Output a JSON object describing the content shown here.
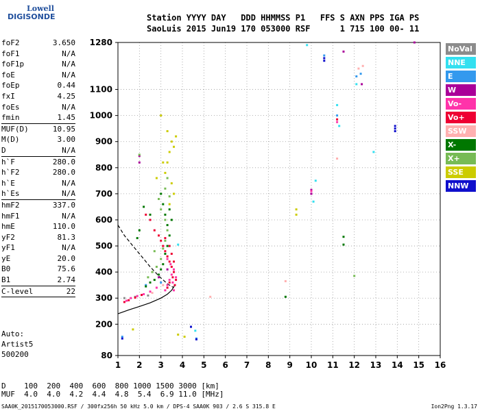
{
  "logo": {
    "line1": "Lowell",
    "line2": "DIGISONDE"
  },
  "header": {
    "line1": "Station YYYY DAY   DDD HHMMSS P1   FFS S AXN PPS IGA PS",
    "line2": "SaoLuis 2015 Jun19 170 053000 RSF      1 715 100 00- 11"
  },
  "params": [
    {
      "k": "foF2",
      "v": "3.650"
    },
    {
      "k": "foF1",
      "v": "N/A"
    },
    {
      "k": "foF1p",
      "v": "N/A"
    },
    {
      "k": "foE",
      "v": "N/A"
    },
    {
      "k": "foEp",
      "v": "0.44"
    },
    {
      "k": "fxI",
      "v": "4.25"
    },
    {
      "k": "foEs",
      "v": "N/A"
    },
    {
      "k": "fmin",
      "v": "1.45"
    },
    {
      "k": "MUF(D)",
      "v": "10.95",
      "sep": true
    },
    {
      "k": "M(D)",
      "v": "3.00"
    },
    {
      "k": "D",
      "v": "N/A"
    },
    {
      "k": "h`F",
      "v": "280.0",
      "sep": true
    },
    {
      "k": "h`F2",
      "v": "280.0"
    },
    {
      "k": "h`E",
      "v": "N/A"
    },
    {
      "k": "h`Es",
      "v": "N/A"
    },
    {
      "k": "hmF2",
      "v": "337.0",
      "sep": true
    },
    {
      "k": "hmF1",
      "v": "N/A"
    },
    {
      "k": "hmE",
      "v": "110.0"
    },
    {
      "k": "yF2",
      "v": "81.3"
    },
    {
      "k": "yF1",
      "v": "N/A"
    },
    {
      "k": "yE",
      "v": "20.0"
    },
    {
      "k": "B0",
      "v": "75.6"
    },
    {
      "k": "B1",
      "v": "2.74"
    },
    {
      "k": "C-level",
      "v": "22",
      "sep": true
    }
  ],
  "artist": {
    "l1": "Auto:",
    "l2": "Artist5",
    "l3": "500200"
  },
  "legend": [
    {
      "label": "NoVal",
      "color": "#8c8c8c"
    },
    {
      "label": "NNE",
      "color": "#33e0f0"
    },
    {
      "label": "E",
      "color": "#3399ee"
    },
    {
      "label": "W",
      "color": "#aa0099"
    },
    {
      "label": "Vo-",
      "color": "#ff33aa"
    },
    {
      "label": "Vo+",
      "color": "#ee0033"
    },
    {
      "label": "SSW",
      "color": "#ffb0b0"
    },
    {
      "label": "X-",
      "color": "#007700"
    },
    {
      "label": "X+",
      "color": "#77bb55"
    },
    {
      "label": "SSE",
      "color": "#cccc00"
    },
    {
      "label": "NNW",
      "color": "#1010cc"
    }
  ],
  "muf_table": {
    "d_label": "D  ",
    "d_values": "100  200  400  600  800 1000 1500 3000 [km]",
    "m_label": "MUF",
    "m_values": "4.0  4.0  4.2  4.4  4.8  5.4  6.9 11.0 [MHz]"
  },
  "footer": "SAA0K_2015170053000.RSF / 300fx256h 50 kHz 5.0 km / DPS-4 SAA0K 903 / 2.6 S 315.8 E",
  "footer_right": "Ion2Png 1.3.17",
  "chart_data": {
    "type": "scatter",
    "xlabel": "",
    "ylabel": "",
    "x_ticks": [
      1,
      2,
      3,
      4,
      5,
      6,
      7,
      8,
      9,
      10,
      11,
      12,
      13,
      14,
      15,
      16
    ],
    "y_ticks": [
      80,
      200,
      300,
      400,
      500,
      600,
      700,
      800,
      900,
      1000,
      1100,
      1280
    ],
    "xlim": [
      1,
      16
    ],
    "ylim": [
      80,
      1280
    ],
    "grid": "dotted",
    "series": [
      {
        "name": "NoVal",
        "color": "#8c8c8c",
        "points": [
          [
            1.3,
            300
          ],
          [
            1.8,
            305
          ],
          [
            2.4,
            310
          ]
        ]
      },
      {
        "name": "NNE",
        "color": "#33e0f0",
        "points": [
          [
            9.8,
            1270
          ],
          [
            10.1,
            670
          ],
          [
            11.2,
            1040
          ],
          [
            12.1,
            1120
          ],
          [
            12.9,
            860
          ],
          [
            10.2,
            750
          ],
          [
            4.6,
            175
          ],
          [
            11.3,
            960
          ],
          [
            3.8,
            505
          ]
        ]
      },
      {
        "name": "E",
        "color": "#3399ee",
        "points": [
          [
            10.6,
            1230
          ],
          [
            11.2,
            1000
          ],
          [
            12.1,
            1150
          ],
          [
            12.3,
            1160
          ],
          [
            1.2,
            152
          ],
          [
            4.4,
            190
          ],
          [
            4.65,
            145
          ],
          [
            3.0,
            360
          ],
          [
            2.3,
            350
          ]
        ]
      },
      {
        "name": "W",
        "color": "#aa0099",
        "points": [
          [
            11.5,
            1245
          ],
          [
            10.0,
            715
          ],
          [
            10.0,
            700
          ],
          [
            14.8,
            1280
          ],
          [
            3.3,
            410
          ],
          [
            2.9,
            380
          ],
          [
            12.35,
            1120
          ],
          [
            2.0,
            820
          ],
          [
            2.0,
            845
          ]
        ]
      },
      {
        "name": "Vo-",
        "color": "#ff33aa",
        "points": [
          [
            10.0,
            710
          ],
          [
            11.2,
            975
          ],
          [
            3.2,
            330
          ],
          [
            3.3,
            350
          ],
          [
            3.4,
            370
          ],
          [
            3.5,
            390
          ],
          [
            3.6,
            410
          ],
          [
            3.45,
            430
          ],
          [
            3.3,
            450
          ],
          [
            2.8,
            340
          ],
          [
            2.5,
            325
          ],
          [
            2.2,
            315
          ],
          [
            1.9,
            308
          ],
          [
            1.6,
            300
          ],
          [
            1.4,
            290
          ],
          [
            3.55,
            360
          ],
          [
            3.6,
            330
          ],
          [
            3.7,
            380
          ]
        ]
      },
      {
        "name": "Vo+",
        "color": "#ee0033",
        "points": [
          [
            11.2,
            985
          ],
          [
            3.3,
            340
          ],
          [
            3.4,
            360
          ],
          [
            3.55,
            380
          ],
          [
            3.6,
            400
          ],
          [
            3.5,
            420
          ],
          [
            3.4,
            440
          ],
          [
            3.3,
            460
          ],
          [
            3.2,
            480
          ],
          [
            3.1,
            500
          ],
          [
            3.0,
            520
          ],
          [
            2.9,
            540
          ],
          [
            2.7,
            560
          ],
          [
            2.5,
            600
          ],
          [
            2.3,
            620
          ],
          [
            3.65,
            350
          ],
          [
            3.7,
            370
          ],
          [
            3.6,
            440
          ],
          [
            3.5,
            470
          ],
          [
            3.4,
            500
          ],
          [
            3.2,
            530
          ],
          [
            2.1,
            312
          ],
          [
            1.8,
            302
          ],
          [
            1.5,
            292
          ],
          [
            1.3,
            285
          ]
        ]
      },
      {
        "name": "SSW",
        "color": "#ffb0b0",
        "points": [
          [
            8.8,
            365
          ],
          [
            11.2,
            835
          ],
          [
            5.3,
            305
          ],
          [
            12.2,
            1180
          ],
          [
            12.4,
            1190
          ],
          [
            3.1,
            350
          ],
          [
            2.6,
            320
          ]
        ]
      },
      {
        "name": "X-",
        "color": "#007700",
        "points": [
          [
            11.5,
            535
          ],
          [
            11.5,
            505
          ],
          [
            8.8,
            305
          ],
          [
            3.1,
            430
          ],
          [
            3.2,
            470
          ],
          [
            3.3,
            500
          ],
          [
            3.0,
            410
          ],
          [
            2.9,
            390
          ],
          [
            2.7,
            370
          ],
          [
            2.5,
            360
          ],
          [
            2.3,
            345
          ],
          [
            3.4,
            540
          ],
          [
            3.3,
            580
          ],
          [
            3.2,
            620
          ],
          [
            3.1,
            660
          ],
          [
            3.0,
            700
          ],
          [
            2.5,
            620
          ],
          [
            2.2,
            650
          ],
          [
            1.9,
            530
          ],
          [
            2.0,
            560
          ],
          [
            3.5,
            600
          ],
          [
            3.4,
            640
          ]
        ]
      },
      {
        "name": "X+",
        "color": "#77bb55",
        "points": [
          [
            12.0,
            385
          ],
          [
            3.0,
            450
          ],
          [
            3.1,
            490
          ],
          [
            3.2,
            520
          ],
          [
            2.8,
            420
          ],
          [
            2.6,
            400
          ],
          [
            2.4,
            380
          ],
          [
            3.3,
            560
          ],
          [
            3.2,
            600
          ],
          [
            3.0,
            640
          ],
          [
            2.7,
            480
          ],
          [
            2.9,
            680
          ],
          [
            3.2,
            720
          ],
          [
            3.3,
            760
          ],
          [
            3.4,
            690
          ],
          [
            2.0,
            850
          ]
        ]
      },
      {
        "name": "SSE",
        "color": "#cccc00",
        "points": [
          [
            9.3,
            620
          ],
          [
            9.3,
            640
          ],
          [
            3.5,
            900
          ],
          [
            3.4,
            860
          ],
          [
            3.3,
            820
          ],
          [
            3.2,
            780
          ],
          [
            3.5,
            740
          ],
          [
            3.6,
            700
          ],
          [
            3.4,
            660
          ],
          [
            3.1,
            820
          ],
          [
            2.8,
            760
          ],
          [
            3.6,
            880
          ],
          [
            3.7,
            920
          ],
          [
            3.3,
            940
          ],
          [
            3.0,
            1000
          ],
          [
            3.8,
            160
          ],
          [
            4.1,
            152
          ],
          [
            1.7,
            180
          ]
        ]
      },
      {
        "name": "NNW",
        "color": "#1010cc",
        "points": [
          [
            13.9,
            960
          ],
          [
            13.9,
            950
          ],
          [
            13.9,
            940
          ],
          [
            4.4,
            190
          ],
          [
            4.65,
            142
          ],
          [
            1.2,
            145
          ],
          [
            10.6,
            1210
          ],
          [
            10.6,
            1220
          ]
        ]
      }
    ],
    "curves": [
      {
        "style": "solid",
        "points": [
          [
            1.0,
            240
          ],
          [
            1.5,
            255
          ],
          [
            2.0,
            268
          ],
          [
            2.5,
            282
          ],
          [
            3.0,
            300
          ],
          [
            3.3,
            315
          ],
          [
            3.5,
            330
          ],
          [
            3.65,
            350
          ]
        ]
      },
      {
        "style": "dashed",
        "points": [
          [
            1.0,
            580
          ],
          [
            1.3,
            540
          ],
          [
            1.7,
            500
          ],
          [
            2.1,
            460
          ],
          [
            2.5,
            420
          ],
          [
            2.9,
            385
          ],
          [
            3.3,
            355
          ],
          [
            3.6,
            340
          ]
        ]
      }
    ]
  }
}
